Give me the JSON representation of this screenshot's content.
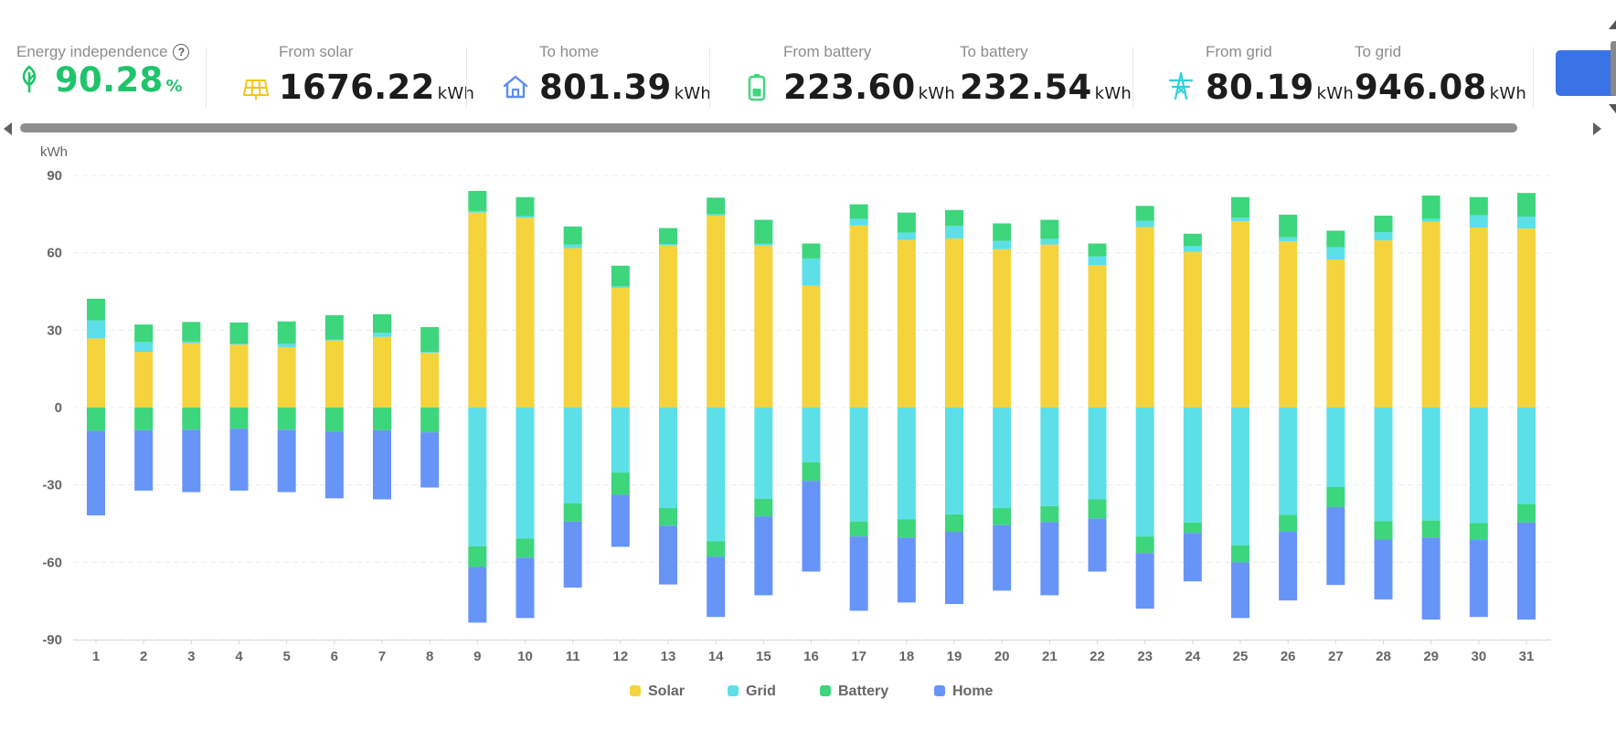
{
  "stats": {
    "independence": {
      "label": "Energy independence",
      "value": "90.28",
      "unit": "%"
    },
    "from_solar": {
      "label": "From solar",
      "value": "1676.22",
      "unit": "kWh"
    },
    "to_home": {
      "label": "To home",
      "value": "801.39",
      "unit": "kWh"
    },
    "from_battery": {
      "label": "From battery",
      "value": "223.60",
      "unit": "kWh"
    },
    "to_battery": {
      "label": "To battery",
      "value": "232.54",
      "unit": "kWh"
    },
    "from_grid": {
      "label": "From grid",
      "value": "80.19",
      "unit": "kWh"
    },
    "to_grid": {
      "label": "To grid",
      "value": "946.08",
      "unit": "kWh"
    }
  },
  "icons": {
    "independence": "leaf-icon",
    "solar": "solar-panel-icon",
    "home": "home-icon",
    "battery": "battery-icon",
    "grid": "power-tower-icon"
  },
  "colors": {
    "solar": "#f5d33d",
    "grid": "#5ddfe8",
    "battery": "#3dd67d",
    "home": "#6794f7",
    "accent_green": "#1fc46b",
    "button_blue": "#3a73e6"
  },
  "chart_data": {
    "type": "bar",
    "stacked": true,
    "ylabel": "kWh",
    "ylim": [
      -90,
      90
    ],
    "yticks": [
      90,
      60,
      30,
      0,
      -30,
      -60,
      -90
    ],
    "grid": true,
    "legend_position": "bottom",
    "categories": [
      "1",
      "2",
      "3",
      "4",
      "5",
      "6",
      "7",
      "8",
      "9",
      "10",
      "11",
      "12",
      "13",
      "14",
      "15",
      "16",
      "17",
      "18",
      "19",
      "20",
      "21",
      "22",
      "23",
      "24",
      "25",
      "26",
      "27",
      "28",
      "29",
      "30",
      "31"
    ],
    "positive_series": [
      {
        "name": "Solar",
        "color": "#f5d33d",
        "values": [
          26.8,
          21.6,
          25.0,
          24.4,
          23.4,
          26.0,
          27.4,
          21.2,
          75.6,
          73.6,
          61.8,
          46.4,
          62.8,
          74.4,
          62.8,
          47.2,
          70.6,
          65.0,
          65.6,
          61.4,
          63.2,
          55.2,
          70.0,
          60.4,
          72.2,
          64.4,
          57.4,
          64.8,
          72.0,
          69.8,
          69.4
        ]
      },
      {
        "name": "Grid",
        "color": "#5ddfe8",
        "values": [
          7.0,
          3.8,
          0.6,
          0.4,
          1.4,
          0.4,
          1.6,
          0.4,
          0.6,
          0.6,
          1.4,
          0.6,
          0.6,
          0.6,
          0.8,
          10.6,
          2.6,
          2.8,
          4.8,
          3.2,
          2.2,
          3.4,
          2.4,
          2.2,
          1.4,
          1.6,
          4.8,
          3.2,
          1.2,
          4.8,
          4.6
        ]
      },
      {
        "name": "Battery",
        "color": "#3dd67d",
        "values": [
          8.4,
          6.8,
          7.6,
          8.2,
          8.6,
          9.4,
          7.2,
          9.6,
          7.8,
          7.4,
          7.0,
          8.0,
          6.2,
          6.4,
          9.2,
          5.8,
          5.6,
          7.8,
          6.2,
          6.8,
          7.4,
          5.0,
          5.8,
          4.8,
          8.0,
          8.8,
          6.4,
          6.4,
          9.0,
          7.0,
          9.2
        ]
      }
    ],
    "negative_series": [
      {
        "name": "Grid",
        "color": "#5ddfe8",
        "values": [
          0.4,
          0.4,
          0.4,
          0.4,
          0.4,
          0.4,
          0.4,
          0.4,
          -53.8,
          -50.8,
          -37.2,
          -25.2,
          -39.0,
          -51.8,
          -35.4,
          -21.2,
          -44.2,
          -43.4,
          -41.4,
          -39.0,
          -38.2,
          -35.6,
          -50.0,
          -44.6,
          -53.4,
          -41.6,
          -30.8,
          -44.0,
          -43.8,
          -44.8,
          -37.4
        ]
      },
      {
        "name": "Battery",
        "color": "#3dd67d",
        "values": [
          -9.0,
          -8.8,
          -8.6,
          -8.2,
          -8.6,
          -9.4,
          -8.8,
          -9.6,
          -8.0,
          -7.4,
          -7.0,
          -8.6,
          -6.8,
          -6.0,
          -6.8,
          -7.2,
          -5.8,
          -7.0,
          -6.8,
          -6.6,
          -6.2,
          -7.4,
          -6.4,
          -4.0,
          -6.6,
          -6.6,
          -7.8,
          -7.2,
          -6.6,
          -6.6,
          -7.2
        ]
      },
      {
        "name": "Home",
        "color": "#6794f7",
        "values": [
          -32.8,
          -23.4,
          -24.2,
          -24.0,
          -24.2,
          -25.8,
          -26.8,
          -21.4,
          -21.6,
          -23.4,
          -25.6,
          -20.2,
          -22.8,
          -23.4,
          -30.6,
          -35.2,
          -28.8,
          -25.2,
          -28.0,
          -25.4,
          -28.4,
          -20.6,
          -21.6,
          -18.8,
          -21.6,
          -26.6,
          -30.2,
          -23.2,
          -31.8,
          -29.8,
          -37.6
        ]
      }
    ],
    "legend": [
      {
        "name": "Solar",
        "color": "#f5d33d"
      },
      {
        "name": "Grid",
        "color": "#5ddfe8"
      },
      {
        "name": "Battery",
        "color": "#3dd67d"
      },
      {
        "name": "Home",
        "color": "#6794f7"
      }
    ]
  }
}
